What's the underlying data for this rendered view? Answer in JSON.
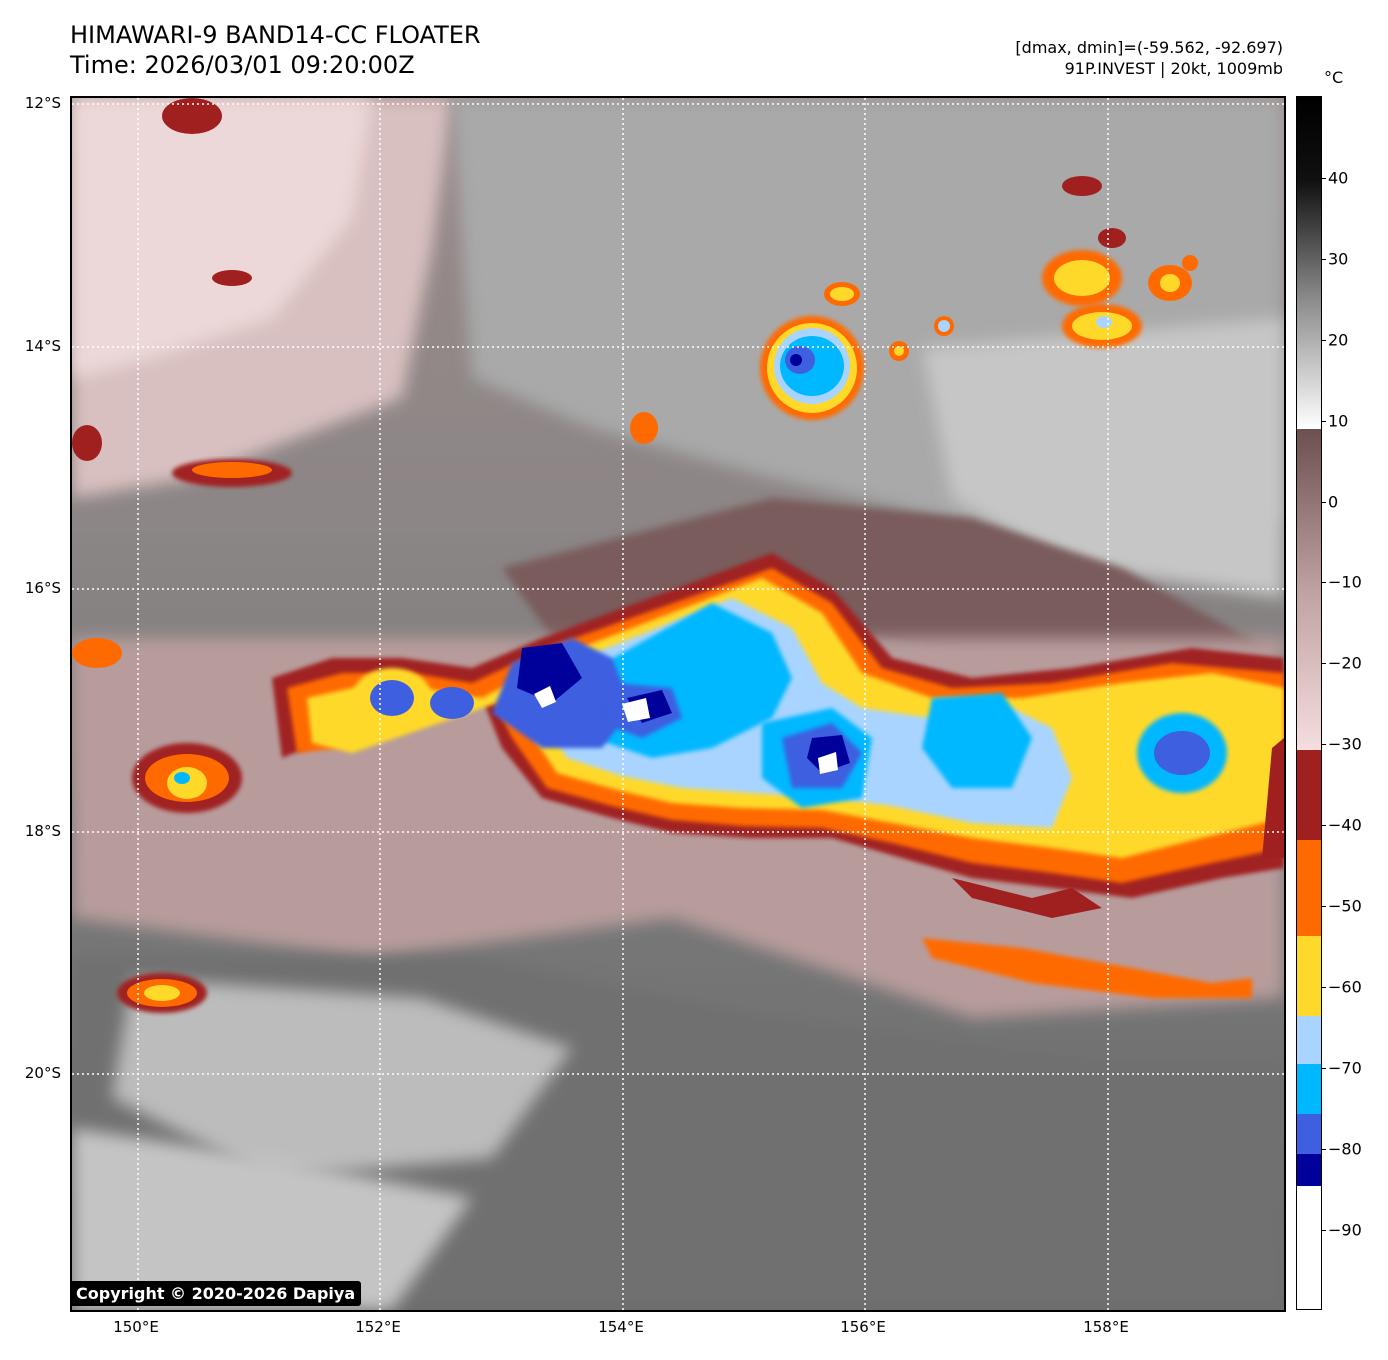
{
  "header": {
    "title_line1": "HIMAWARI-9 BAND14-CC FLOATER",
    "title_line2": "Time: 2026/03/01 09:20:00Z",
    "meta_line1": "[dmax, dmin]=(-59.562, -92.697)",
    "meta_line2": "91P.INVEST | 20kt, 1009mb"
  },
  "map": {
    "lat_labels": [
      "12°S",
      "14°S",
      "16°S",
      "18°S",
      "20°S"
    ],
    "lon_labels": [
      "150°E",
      "152°E",
      "154°E",
      "156°E",
      "158°E"
    ]
  },
  "colorbar": {
    "unit": "°C",
    "tick_labels": [
      "40",
      "30",
      "20",
      "10",
      "0",
      "−10",
      "−20",
      "−30",
      "−40",
      "−50",
      "−60",
      "−70",
      "−80",
      "−90"
    ],
    "segments": [
      {
        "label": "black-to-white",
        "colors": [
          "#000000",
          "#ffffff"
        ]
      },
      {
        "label": "brown-to-pink",
        "colors": [
          "#6e4f4f",
          "#f6dede"
        ]
      },
      {
        "color": "#a02020"
      },
      {
        "color": "#ff6a00"
      },
      {
        "color": "#ffd92a"
      },
      {
        "color": "#a8d4ff"
      },
      {
        "color": "#00b8ff"
      },
      {
        "color": "#3e5fe0"
      },
      {
        "color": "#00009a"
      },
      {
        "color": "#ffffff"
      }
    ]
  },
  "copyright": "Copyright © 2020-2026 Dapiya"
}
